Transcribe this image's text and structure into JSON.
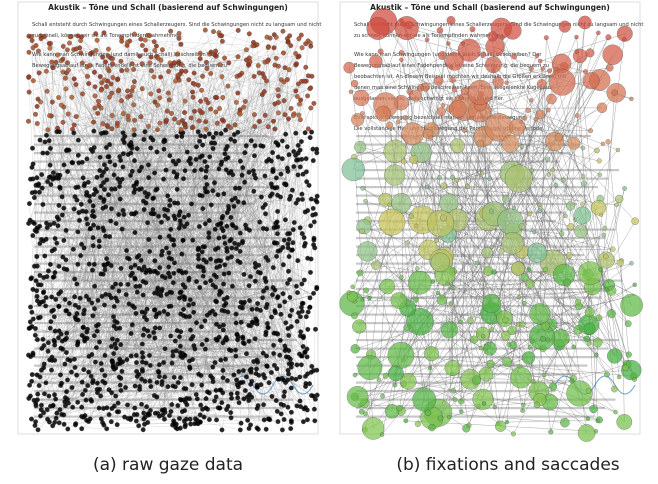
{
  "panels": [
    {
      "document": {
        "title": "Akustik – Töne und Schall (basierend auf Schwingungen)",
        "lines": [
          "Schall entsteht durch Schwingungen eines Schallerzeugers. Sind die Schwingungen nicht zu langsam und nicht",
          "zu schnell, können wir sie als Tonempfinden wahrnehmen.",
          "Wie kann man Schwingungen (und damit auch Schall) beschreiben? Der",
          "Bewegungsablauf eines Fadenpendels ist eine Schwingung, die bequem zu"
        ]
      },
      "caption": "(a) raw gaze data"
    },
    {
      "document": {
        "title": "Akustik – Töne und Schall (basierend auf Schwingungen)",
        "lines": [
          "Schall entsteht durch Schwingungen eines Schallerzeugers. Sind die Schwingungen nicht zu langsam und nicht",
          "zu schnell, können wir sie als Tonempfinden wahrnehmen.",
          "Wie kann man Schwingungen (und damit auch Schall) beschreiben? Der",
          "Bewegungsablauf eines Fadenpendels ist eine Schwingung, die bequem zu",
          "beobachten ist. An diesem Beispiel möchten wir deshalb die Größen erklären, mit",
          "denen man eine Schwingung beschreiben kann. Eine ausgelenkte Kugel aus",
          "ausgelassen sie los, dass schwingt sie immer hin und her.",
          "Eine solche Bewegung bezeichnet man als periodische Bewegung.",
          "Die vollständige Hin- und Herbewegung der Pendelkugel ist eine Periode."
        ]
      },
      "caption": "(b) fixations and saccades"
    }
  ]
}
